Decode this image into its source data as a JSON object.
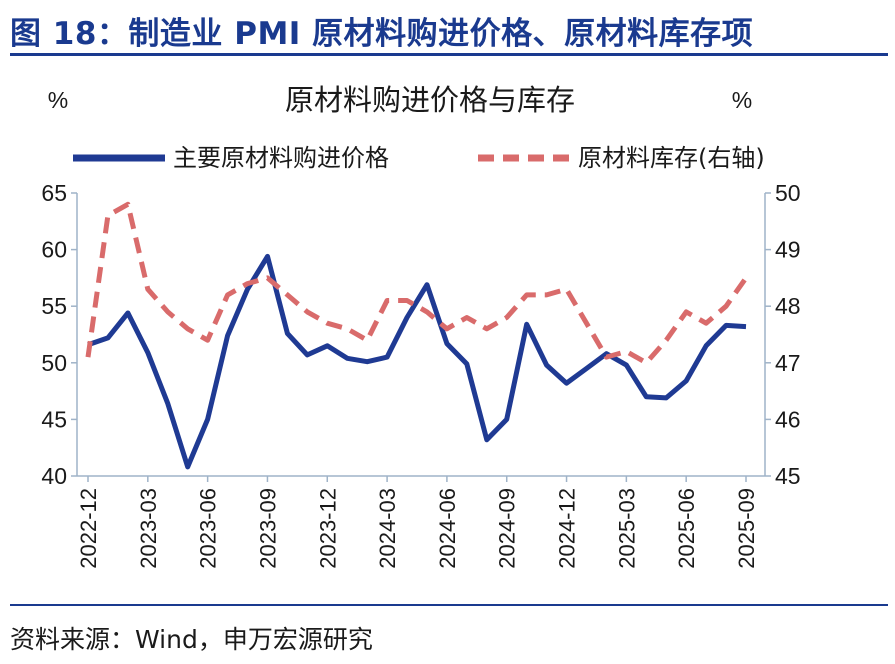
{
  "header": {
    "title": "图 18：制造业 PMI 原材料购进价格、原材料库存项"
  },
  "footer": {
    "source": "资料来源：Wind，申万宏源研究"
  },
  "colors": {
    "series1": "#1f3a93",
    "series2": "#d96b6b",
    "title": "#1a3a8f",
    "axis": "#9fb3c8"
  },
  "chart_data": {
    "type": "line",
    "title": "原材料购进价格与库存",
    "y_left_unit": "%",
    "y_right_unit": "%",
    "x": [
      "2022-12",
      "2023-01",
      "2023-02",
      "2023-03",
      "2023-04",
      "2023-05",
      "2023-06",
      "2023-07",
      "2023-08",
      "2023-09",
      "2023-10",
      "2023-11",
      "2023-12",
      "2024-01",
      "2024-02",
      "2024-03",
      "2024-04",
      "2024-05",
      "2024-06",
      "2024-07",
      "2024-08",
      "2024-09",
      "2024-10",
      "2024-11",
      "2024-12",
      "2025-01",
      "2025-02",
      "2025-03",
      "2025-04",
      "2025-05",
      "2025-06",
      "2025-07",
      "2025-08",
      "2025-09"
    ],
    "x_tick_labels": [
      "2022-12",
      "2023-03",
      "2023-06",
      "2023-09",
      "2023-12",
      "2024-03",
      "2024-06",
      "2024-09",
      "2024-12",
      "2025-03",
      "2025-06",
      "2025-09"
    ],
    "y_left": {
      "min": 40,
      "max": 65,
      "ticks": [
        40,
        45,
        50,
        55,
        60,
        65
      ]
    },
    "y_right": {
      "min": 45,
      "max": 50,
      "ticks": [
        45,
        46,
        47,
        48,
        49,
        50
      ]
    },
    "series": [
      {
        "name": "主要原材料购进价格",
        "axis": "left",
        "style": "solid",
        "values": [
          51.6,
          52.2,
          54.4,
          50.9,
          46.4,
          40.8,
          45.0,
          52.4,
          56.5,
          59.4,
          52.6,
          50.7,
          51.5,
          50.4,
          50.1,
          50.5,
          54.0,
          56.9,
          51.7,
          49.9,
          43.2,
          45.0,
          53.4,
          49.8,
          48.2,
          49.5,
          50.8,
          49.8,
          47.0,
          46.9,
          48.4,
          51.5,
          53.3,
          53.2
        ]
      },
      {
        "name": "原材料库存(右轴)",
        "axis": "right",
        "style": "dashed",
        "values": [
          47.1,
          49.6,
          49.8,
          48.3,
          47.9,
          47.6,
          47.4,
          48.2,
          48.4,
          48.5,
          48.2,
          47.9,
          47.7,
          47.6,
          47.4,
          48.1,
          48.1,
          47.9,
          47.6,
          47.8,
          47.6,
          47.8,
          48.2,
          48.2,
          48.3,
          47.7,
          47.1,
          47.2,
          47.0,
          47.4,
          47.9,
          47.7,
          48.0,
          48.5
        ]
      }
    ]
  }
}
